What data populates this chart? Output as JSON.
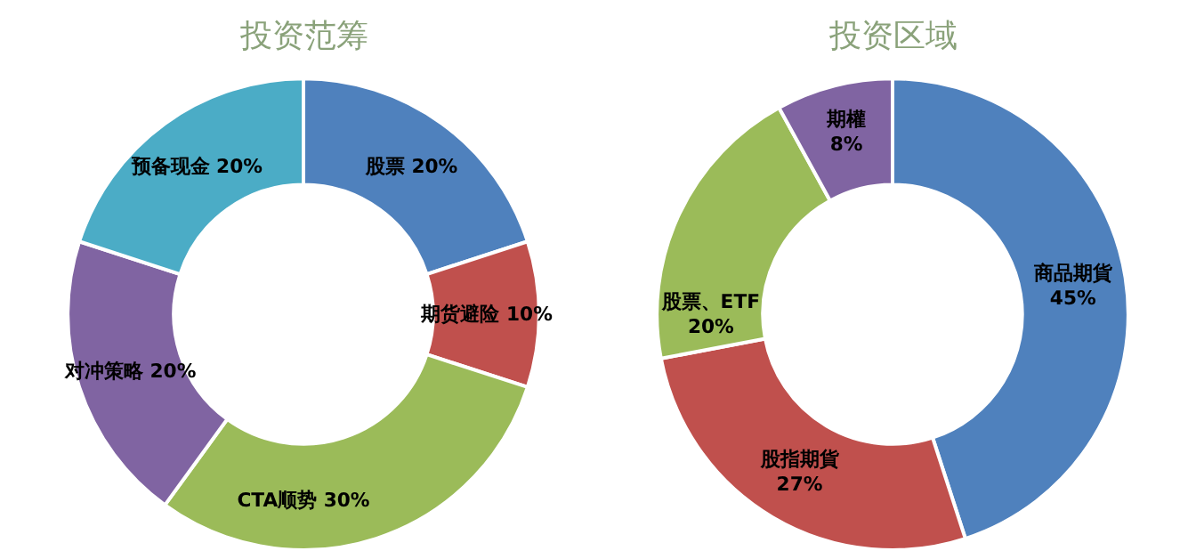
{
  "chart_data": [
    {
      "type": "donut",
      "title": "投资范筹",
      "categories": [
        "股票",
        "期货避险",
        "CTA顺势",
        "对冲策略",
        "预备现金"
      ],
      "values": [
        20,
        10,
        30,
        20,
        20
      ],
      "colors": [
        "#4f81bd",
        "#c0504d",
        "#9bbb59",
        "#8064a2",
        "#4bacc6"
      ],
      "value_labels": [
        "20%",
        "10%",
        "30%",
        "20%",
        "20%"
      ],
      "legend": false
    },
    {
      "type": "donut",
      "title": "投资区域",
      "categories": [
        "商品期貨",
        "股指期貨",
        "股票、ETF",
        "期權"
      ],
      "values": [
        45,
        27,
        20,
        8
      ],
      "colors": [
        "#4f81bd",
        "#c0504d",
        "#9bbb59",
        "#8064a2"
      ],
      "value_labels": [
        "45%",
        "27%",
        "20%",
        "8%"
      ],
      "legend": false
    }
  ]
}
